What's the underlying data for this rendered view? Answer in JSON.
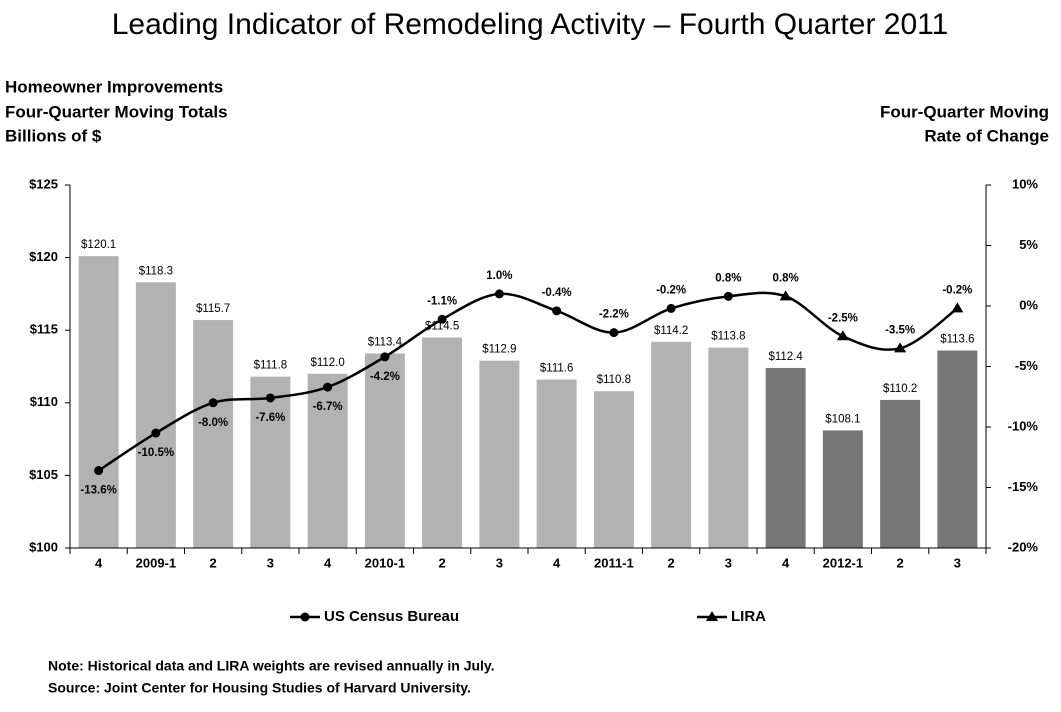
{
  "chart_data": {
    "type": "bar",
    "title": "Leading Indicator of Remodeling Activity – Fourth Quarter 2011",
    "y_label": [
      "Homeowner Improvements",
      "Four-Quarter Moving Totals",
      "Billions of $"
    ],
    "y2_label": [
      "Four-Quarter Moving",
      "Rate of Change"
    ],
    "notes": [
      "Note: Historical data and LIRA weights are revised annually in July.",
      "Source: Joint Center for Housing Studies of Harvard University."
    ],
    "categories": [
      "4",
      "2009-1",
      "2",
      "3",
      "4",
      "2010-1",
      "2",
      "3",
      "4",
      "2011-1",
      "2",
      "3",
      "4",
      "2012-1",
      "2",
      "3"
    ],
    "ylim": [
      100,
      125
    ],
    "yticks": [
      {
        "value": 100,
        "label": "$100"
      },
      {
        "value": 105,
        "label": "$105"
      },
      {
        "value": 110,
        "label": "$110"
      },
      {
        "value": 115,
        "label": "$115"
      },
      {
        "value": 120,
        "label": "$120"
      },
      {
        "value": 125,
        "label": "$125"
      }
    ],
    "y2lim": [
      -20,
      10
    ],
    "y2ticks": [
      {
        "value": -20,
        "label": "-20%"
      },
      {
        "value": -15,
        "label": "-15%"
      },
      {
        "value": -10,
        "label": "-10%"
      },
      {
        "value": -5,
        "label": "-5%"
      },
      {
        "value": 0,
        "label": "0%"
      },
      {
        "value": 5,
        "label": "5%"
      },
      {
        "value": 10,
        "label": "10%"
      }
    ],
    "bars": {
      "values": [
        120.1,
        118.3,
        115.7,
        111.8,
        112.0,
        113.4,
        114.5,
        112.9,
        111.6,
        110.8,
        114.2,
        113.8,
        112.4,
        108.1,
        110.2,
        113.6
      ],
      "value_labels": [
        "$120.1",
        "$118.3",
        "$115.7",
        "$111.8",
        "$112.0",
        "$113.4",
        "$114.5",
        "$112.9",
        "$111.6",
        "$110.8",
        "$114.2",
        "$113.8",
        "$112.4",
        "$108.1",
        "$110.2",
        "$113.6"
      ],
      "colors": [
        "#b2b2b2",
        "#b2b2b2",
        "#b2b2b2",
        "#b2b2b2",
        "#b2b2b2",
        "#b2b2b2",
        "#b2b2b2",
        "#b2b2b2",
        "#b2b2b2",
        "#b2b2b2",
        "#b2b2b2",
        "#b2b2b2",
        "#777777",
        "#777777",
        "#777777",
        "#777777"
      ]
    },
    "series": [
      {
        "name": "US Census Bureau",
        "color": "#000000",
        "marker": "circle",
        "axis": "y2",
        "values": [
          -13.6,
          -10.5,
          -8.0,
          -7.6,
          -6.7,
          -4.2,
          -1.1,
          1.0,
          -0.4,
          -2.2,
          -0.2,
          0.8,
          null,
          null,
          null,
          null
        ],
        "value_labels": [
          "-13.6%",
          "-10.5%",
          "-8.0%",
          "-7.6%",
          "-6.7%",
          "-4.2%",
          "-1.1%",
          "1.0%",
          "-0.4%",
          "-2.2%",
          "-0.2%",
          "0.8%",
          null,
          null,
          null,
          null
        ]
      },
      {
        "name": "LIRA",
        "color": "#000000",
        "marker": "triangle",
        "axis": "y2",
        "values": [
          null,
          null,
          null,
          null,
          null,
          null,
          null,
          null,
          null,
          null,
          null,
          null,
          0.8,
          -2.5,
          -3.5,
          -0.2
        ],
        "value_labels": [
          null,
          null,
          null,
          null,
          null,
          null,
          null,
          null,
          null,
          null,
          null,
          null,
          "0.8%",
          "-2.5%",
          "-3.5%",
          "-0.2%"
        ]
      }
    ]
  }
}
